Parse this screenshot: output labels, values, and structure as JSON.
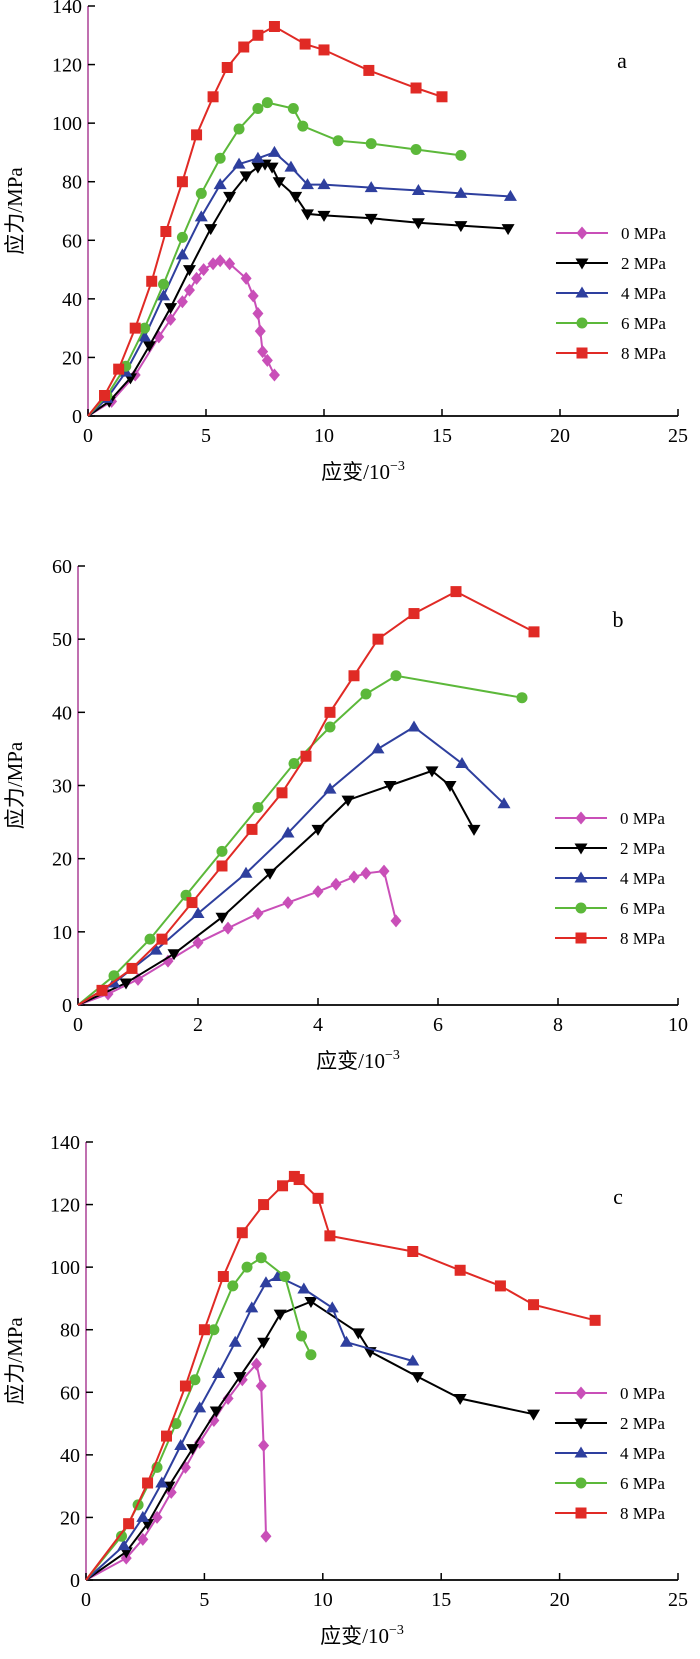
{
  "chart_data": [
    {
      "type": "line",
      "panel_label": "a",
      "xlabel": "应变/10",
      "xlabel_exponent": "−3",
      "ylabel": "应力/MPa",
      "xlim": [
        0,
        25
      ],
      "ylim": [
        0,
        140
      ],
      "xticks": [
        0,
        5,
        10,
        15,
        20,
        25
      ],
      "yticks": [
        0,
        20,
        40,
        60,
        80,
        100,
        120,
        140
      ],
      "legend_position": "right",
      "series": [
        {
          "name": "0 MPa",
          "color": "#c94fb8",
          "marker": "diamond",
          "x": [
            0,
            1,
            2,
            3,
            3.5,
            4,
            4.3,
            4.6,
            4.9,
            5.3,
            5.6,
            6.0,
            6.7,
            7.0,
            7.2,
            7.3,
            7.4,
            7.6,
            7.9
          ],
          "y": [
            0,
            5,
            14,
            27,
            33,
            39,
            43,
            47,
            50,
            52,
            53,
            52,
            47,
            41,
            35,
            29,
            22,
            19,
            14
          ]
        },
        {
          "name": "2 MPa",
          "color": "#000000",
          "marker": "triangle-down",
          "x": [
            0,
            0.9,
            1.8,
            2.6,
            3.5,
            4.3,
            5.2,
            6.0,
            6.7,
            7.2,
            7.5,
            7.8,
            8.1,
            8.8,
            9.3,
            10.0,
            12.0,
            14.0,
            15.8,
            17.8
          ],
          "y": [
            0,
            5,
            13,
            24,
            37,
            50,
            64,
            75,
            82,
            85,
            86,
            85,
            80,
            75,
            69,
            68.5,
            67.5,
            66,
            65,
            64
          ]
        },
        {
          "name": "4 MPa",
          "color": "#2e3f9e",
          "marker": "triangle-up",
          "x": [
            0,
            0.8,
            1.6,
            2.4,
            3.2,
            4.0,
            4.8,
            5.6,
            6.4,
            7.2,
            7.9,
            8.6,
            9.3,
            10.0,
            12.0,
            14.0,
            15.8,
            17.9
          ],
          "y": [
            0,
            6,
            15,
            27,
            41,
            55,
            68,
            79,
            86,
            88,
            90,
            85,
            79,
            79,
            78,
            77,
            76,
            75
          ]
        },
        {
          "name": "6 MPa",
          "color": "#5cb83a",
          "marker": "circle",
          "x": [
            0,
            0.8,
            1.6,
            2.4,
            3.2,
            4.0,
            4.8,
            5.6,
            6.4,
            7.2,
            7.6,
            8.7,
            9.1,
            10.6,
            12.0,
            13.9,
            15.8
          ],
          "y": [
            0,
            7,
            17,
            30,
            45,
            61,
            76,
            88,
            98,
            105,
            107,
            105,
            99,
            94,
            93,
            91,
            89
          ]
        },
        {
          "name": "8 MPa",
          "color": "#e02a25",
          "marker": "square",
          "x": [
            0,
            0.7,
            1.3,
            2.0,
            2.7,
            3.3,
            4.0,
            4.6,
            5.3,
            5.9,
            6.6,
            7.2,
            7.9,
            9.2,
            10.0,
            11.9,
            13.9,
            15.0
          ],
          "y": [
            0,
            7,
            16,
            30,
            46,
            63,
            80,
            96,
            109,
            119,
            126,
            130,
            133,
            127,
            125,
            118,
            112,
            109
          ]
        }
      ]
    },
    {
      "type": "line",
      "panel_label": "b",
      "xlabel": "应变/10",
      "xlabel_exponent": "−3",
      "ylabel": "应力/MPa",
      "xlim": [
        0,
        10
      ],
      "ylim": [
        0,
        60
      ],
      "xticks": [
        0,
        2,
        4,
        6,
        8,
        10
      ],
      "yticks": [
        0,
        10,
        20,
        30,
        40,
        50,
        60
      ],
      "legend_position": "right",
      "series": [
        {
          "name": "0 MPa",
          "color": "#c94fb8",
          "marker": "diamond",
          "x": [
            0,
            0.5,
            1.0,
            1.5,
            2.0,
            2.5,
            3.0,
            3.5,
            4.0,
            4.3,
            4.6,
            4.8,
            5.1,
            5.3
          ],
          "y": [
            0,
            1.5,
            3.5,
            6,
            8.5,
            10.5,
            12.5,
            14,
            15.5,
            16.5,
            17.5,
            18,
            18.3,
            11.5
          ]
        },
        {
          "name": "2 MPa",
          "color": "#000000",
          "marker": "triangle-down",
          "x": [
            0,
            0.8,
            1.6,
            2.4,
            3.2,
            4.0,
            4.5,
            5.2,
            5.9,
            6.2,
            6.6
          ],
          "y": [
            0,
            3,
            7,
            12,
            18,
            24,
            28,
            30,
            32,
            30,
            24
          ]
        },
        {
          "name": "4 MPa",
          "color": "#2e3f9e",
          "marker": "triangle-up",
          "x": [
            0,
            0.6,
            1.3,
            2.0,
            2.8,
            3.5,
            4.2,
            5.0,
            5.6,
            6.4,
            7.1
          ],
          "y": [
            0,
            3,
            7.5,
            12.5,
            18,
            23.5,
            29.5,
            35,
            38,
            33,
            27.5
          ]
        },
        {
          "name": "6 MPa",
          "color": "#5cb83a",
          "marker": "circle",
          "x": [
            0,
            0.6,
            1.2,
            1.8,
            2.4,
            3.0,
            3.6,
            4.2,
            4.8,
            5.3,
            7.4
          ],
          "y": [
            0,
            4,
            9,
            15,
            21,
            27,
            33,
            38,
            42.5,
            45,
            42
          ]
        },
        {
          "name": "8 MPa",
          "color": "#e02a25",
          "marker": "square",
          "x": [
            0,
            0.4,
            0.9,
            1.4,
            1.9,
            2.4,
            2.9,
            3.4,
            3.8,
            4.2,
            4.6,
            5.0,
            5.6,
            6.3,
            7.6
          ],
          "y": [
            0,
            2,
            5,
            9,
            14,
            19,
            24,
            29,
            34,
            40,
            45,
            50,
            53.5,
            56.5,
            51
          ]
        }
      ]
    },
    {
      "type": "line",
      "panel_label": "c",
      "xlabel": "应变/10",
      "xlabel_exponent": "−3",
      "ylabel": "应力/MPa",
      "xlim": [
        0,
        25
      ],
      "ylim": [
        0,
        140
      ],
      "xticks": [
        0,
        5,
        10,
        15,
        20,
        25
      ],
      "yticks": [
        0,
        20,
        40,
        60,
        80,
        100,
        120,
        140
      ],
      "legend_position": "right",
      "series": [
        {
          "name": "0 MPa",
          "color": "#c94fb8",
          "marker": "diamond",
          "x": [
            0,
            1.7,
            2.4,
            3.0,
            3.6,
            4.2,
            4.8,
            5.4,
            6.0,
            6.6,
            7.2,
            7.4,
            7.5,
            7.6
          ],
          "y": [
            0,
            7,
            13,
            20,
            28,
            36,
            44,
            51,
            58,
            64,
            69,
            62,
            43,
            14
          ]
        },
        {
          "name": "2 MPa",
          "color": "#000000",
          "marker": "triangle-down",
          "x": [
            0,
            1.7,
            2.6,
            3.5,
            4.5,
            5.5,
            6.5,
            7.5,
            8.2,
            9.5,
            11.5,
            12.0,
            14.0,
            15.8,
            18.9
          ],
          "y": [
            0,
            9,
            18,
            30,
            42,
            54,
            65,
            76,
            85,
            89,
            79,
            73,
            65,
            58,
            53
          ]
        },
        {
          "name": "4 MPa",
          "color": "#2e3f9e",
          "marker": "triangle-up",
          "x": [
            0,
            1.6,
            2.4,
            3.2,
            4.0,
            4.8,
            5.6,
            6.3,
            7.0,
            7.6,
            8.1,
            9.2,
            10.4,
            11.0,
            13.8
          ],
          "y": [
            0,
            11,
            20,
            31,
            43,
            55,
            66,
            76,
            87,
            95,
            97,
            93,
            87,
            76,
            70
          ]
        },
        {
          "name": "6 MPa",
          "color": "#5cb83a",
          "marker": "circle",
          "x": [
            0,
            1.5,
            2.2,
            3.0,
            3.8,
            4.6,
            5.4,
            6.2,
            6.8,
            7.4,
            8.4,
            9.1,
            9.5
          ],
          "y": [
            0,
            14,
            24,
            36,
            50,
            64,
            80,
            94,
            100,
            103,
            97,
            78,
            72
          ]
        },
        {
          "name": "8 MPa",
          "color": "#e02a25",
          "marker": "square",
          "x": [
            0,
            1.8,
            2.6,
            3.4,
            4.2,
            5.0,
            5.8,
            6.6,
            7.5,
            8.3,
            8.8,
            9.0,
            9.8,
            10.3,
            13.8,
            15.8,
            17.5,
            18.9,
            21.5
          ],
          "y": [
            0,
            18,
            31,
            46,
            62,
            80,
            97,
            111,
            120,
            126,
            129,
            128,
            122,
            110,
            105,
            99,
            94,
            88,
            83
          ]
        }
      ]
    }
  ]
}
